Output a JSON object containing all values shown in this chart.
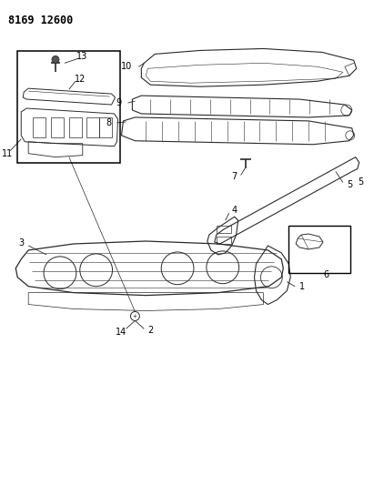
{
  "title": "8169 12600",
  "bg_color": "#ffffff",
  "lc": "#2a2a2a",
  "lw": 0.8,
  "thin": 0.5,
  "fig_w": 4.11,
  "fig_h": 5.33,
  "dpi": 100
}
